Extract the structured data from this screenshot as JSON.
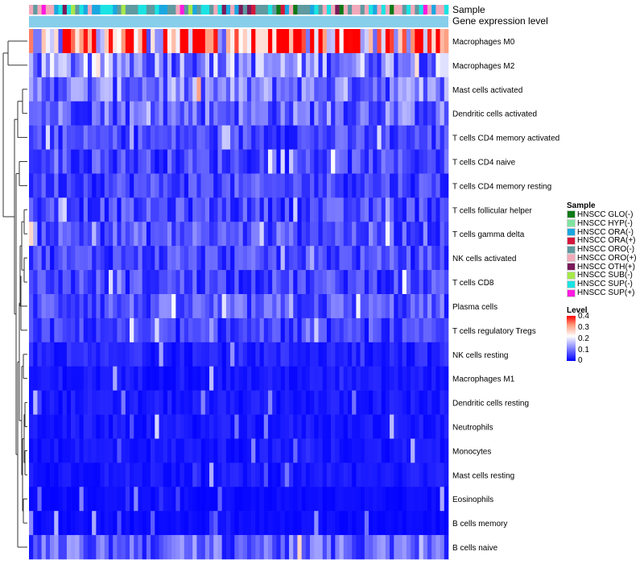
{
  "chart_data": {
    "type": "heatmap",
    "annotation_labels": [
      "Sample",
      "Gene expression level"
    ],
    "rows": [
      {
        "name": "Macrophages M0",
        "mean": 0.3
      },
      {
        "name": "Macrophages M2",
        "mean": 0.12
      },
      {
        "name": "Mast cells activated",
        "mean": 0.1
      },
      {
        "name": "Dendritic cells activated",
        "mean": 0.09
      },
      {
        "name": "T cells CD4 memory activated",
        "mean": 0.06
      },
      {
        "name": "T cells CD4 naive",
        "mean": 0.06
      },
      {
        "name": "T cells CD4 memory resting",
        "mean": 0.06
      },
      {
        "name": "T cells follicular helper",
        "mean": 0.06
      },
      {
        "name": "T cells gamma delta",
        "mean": 0.07
      },
      {
        "name": "NK cells activated",
        "mean": 0.06
      },
      {
        "name": "T cells CD8",
        "mean": 0.06
      },
      {
        "name": "Plasma cells",
        "mean": 0.07
      },
      {
        "name": "T cells regulatory  Tregs",
        "mean": 0.05
      },
      {
        "name": "NK cells resting",
        "mean": 0.03
      },
      {
        "name": "Macrophages M1",
        "mean": 0.02
      },
      {
        "name": "Dendritic cells resting",
        "mean": 0.02
      },
      {
        "name": "Neutrophils",
        "mean": 0.02
      },
      {
        "name": "Monocytes",
        "mean": 0.02
      },
      {
        "name": "Mast cells resting",
        "mean": 0.02
      },
      {
        "name": "Eosinophils",
        "mean": 0.01
      },
      {
        "name": "B cells memory",
        "mean": 0.01
      },
      {
        "name": "B cells naive",
        "mean": 0.08
      }
    ],
    "num_samples": 100,
    "sample_legend": {
      "title": "Sample",
      "items": [
        {
          "label": "HNSCC GLO(-)",
          "color": "#0e7a16"
        },
        {
          "label": "HNSCC HYP(-)",
          "color": "#7fe3a0"
        },
        {
          "label": "HNSCC ORA(-)",
          "color": "#1aa7e0"
        },
        {
          "label": "HNSCC ORA(+)",
          "color": "#d4163c"
        },
        {
          "label": "HNSCC ORO(-)",
          "color": "#5e9aa0"
        },
        {
          "label": "HNSCC ORO(+)",
          "color": "#f2a9b9"
        },
        {
          "label": "HNSCC OTH(+)",
          "color": "#7a1a5a"
        },
        {
          "label": "HNSCC SUB(-)",
          "color": "#a6e84a"
        },
        {
          "label": "HNSCC SUP(-)",
          "color": "#1be3e3"
        },
        {
          "label": "HNSCC SUP(+)",
          "color": "#ff1ae0"
        }
      ]
    },
    "level_legend": {
      "title": "Level",
      "ticks": [
        "0.4",
        "0.3",
        "0.2",
        "0.1",
        "0"
      ],
      "range": [
        0,
        0.4
      ]
    },
    "expression_bar_color": "#87ceeb"
  }
}
